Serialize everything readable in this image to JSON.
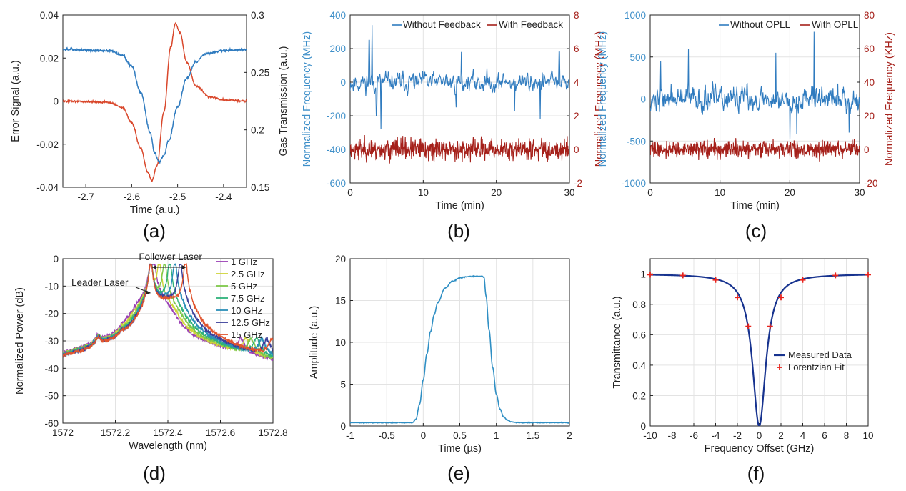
{
  "panel_labels": [
    "(a)",
    "(b)",
    "(c)",
    "(d)",
    "(e)",
    "(f)"
  ],
  "colors": {
    "blue": "#2f7bbf",
    "red": "#d9472b",
    "darkred": "#a5201a",
    "axis": "#222222",
    "grid": "#e3e3e3",
    "navy": "#17338f",
    "cross": "#e8231c",
    "blueaxis": "#3e8fc9",
    "redaxis": "#a5201a"
  },
  "chart_data": [
    {
      "id": "a",
      "type": "line",
      "xlabel": "Time (a.u.)",
      "ylabel": "Error Signal (a.u.)",
      "y2label": "Gas Transmission (a.u.)",
      "xlim": [
        -2.75,
        -2.35
      ],
      "ylim": [
        -0.04,
        0.04
      ],
      "y2lim": [
        0.15,
        0.3
      ],
      "grid": false,
      "xticks": [
        -2.7,
        -2.6,
        -2.5,
        -2.4
      ],
      "xticklabels": [
        "-2.7",
        "-2.6",
        "-2.5",
        "-2.4"
      ],
      "yticks": [
        -0.04,
        -0.02,
        0,
        0.02,
        0.04
      ],
      "yticklabels": [
        "-0.04",
        "-0.02",
        "0",
        "0.02",
        "0.04"
      ],
      "y2ticks": [
        0.15,
        0.2,
        0.25,
        0.3
      ],
      "y2ticklabels": [
        "0.15",
        "0.2",
        "0.25",
        "0.3"
      ],
      "series": [
        {
          "axis": "y",
          "color": "#d9472b",
          "noise": 0.0003,
          "x": [
            -2.75,
            -2.65,
            -2.62,
            -2.6,
            -2.58,
            -2.565,
            -2.556,
            -2.545,
            -2.53,
            -2.515,
            -2.505,
            -2.495,
            -2.48,
            -2.46,
            -2.43,
            -2.4,
            -2.35
          ],
          "y": [
            0.0,
            -0.0005,
            -0.003,
            -0.01,
            -0.022,
            -0.033,
            -0.037,
            -0.03,
            -0.005,
            0.025,
            0.036,
            0.032,
            0.018,
            0.007,
            0.002,
            0.0006,
            0.0
          ]
        },
        {
          "axis": "y2",
          "color": "#2f7bbf",
          "noise": 0.0007,
          "x": [
            -2.75,
            -2.65,
            -2.62,
            -2.6,
            -2.58,
            -2.56,
            -2.55,
            -2.54,
            -2.53,
            -2.52,
            -2.5,
            -2.48,
            -2.46,
            -2.44,
            -2.4,
            -2.35
          ],
          "y": [
            0.27,
            0.269,
            0.265,
            0.255,
            0.232,
            0.198,
            0.18,
            0.172,
            0.178,
            0.19,
            0.22,
            0.245,
            0.259,
            0.266,
            0.269,
            0.27
          ]
        }
      ]
    },
    {
      "id": "b",
      "type": "line",
      "xlabel": "Time (min)",
      "ylabel": "Normalized Frequency (MHz)",
      "y2label": "Normalized Frequency (MHz)",
      "xlim": [
        0,
        30
      ],
      "ylim": [
        -600,
        400
      ],
      "y2lim": [
        -2,
        8
      ],
      "grid": true,
      "xticks": [
        0,
        10,
        20,
        30
      ],
      "xticklabels": [
        "0",
        "10",
        "20",
        "30"
      ],
      "yticks": [
        -600,
        -400,
        -200,
        0,
        200,
        400
      ],
      "yticklabels": [
        "-600",
        "-400",
        "-200",
        "0",
        "200",
        "400"
      ],
      "y2ticks": [
        -2,
        0,
        2,
        4,
        6,
        8
      ],
      "y2ticklabels": [
        "-2",
        "0",
        "2",
        "4",
        "6",
        "8"
      ],
      "legend": {
        "placement": "top-right",
        "entries": [
          "Without Feedback",
          "With Feedback"
        ]
      },
      "series": [
        {
          "axis": "y",
          "color": "#2f7bbf",
          "random": {
            "n": 420,
            "base": 0,
            "amp": 70,
            "seed": 11,
            "spikes": [
              [
                3,
                340
              ],
              [
                2.6,
                250
              ],
              [
                4.2,
                -280
              ],
              [
                3.6,
                -200
              ],
              [
                14.5,
                -150
              ],
              [
                15.2,
                180
              ],
              [
                22.5,
                -170
              ],
              [
                26,
                -220
              ],
              [
                28.6,
                180
              ]
            ]
          }
        },
        {
          "axis": "y2",
          "color": "#a5201a",
          "random": {
            "n": 700,
            "base": 0,
            "amp": 0.45,
            "seed": 23,
            "spikes": []
          }
        }
      ]
    },
    {
      "id": "c",
      "type": "line",
      "xlabel": "Time (min)",
      "ylabel": "Normalized Frequency (MHz)",
      "y2label": "Normalized Frequency (KHz)",
      "xlim": [
        0,
        30
      ],
      "ylim": [
        -1000,
        1000
      ],
      "y2lim": [
        -20,
        80
      ],
      "grid": true,
      "xticks": [
        0,
        10,
        20,
        30
      ],
      "xticklabels": [
        "0",
        "10",
        "20",
        "30"
      ],
      "yticks": [
        -1000,
        -500,
        0,
        500,
        1000
      ],
      "yticklabels": [
        "-1000",
        "-500",
        "0",
        "500",
        "1000"
      ],
      "y2ticks": [
        -20,
        0,
        20,
        40,
        60,
        80
      ],
      "y2ticklabels": [
        "-20",
        "0",
        "20",
        "40",
        "60",
        "80"
      ],
      "legend": {
        "placement": "top-right",
        "entries": [
          "Without OPLL",
          "With OPLL"
        ]
      },
      "series": [
        {
          "axis": "y",
          "color": "#2f7bbf",
          "random": {
            "n": 520,
            "base": 0,
            "amp": 170,
            "seed": 37,
            "spikes": [
              [
                5.5,
                600
              ],
              [
                18,
                550
              ],
              [
                23.5,
                800
              ],
              [
                20,
                -480
              ],
              [
                21,
                -420
              ],
              [
                1.5,
                450
              ],
              [
                28.5,
                -400
              ]
            ]
          }
        },
        {
          "axis": "y2",
          "color": "#a5201a",
          "random": {
            "n": 700,
            "base": 0,
            "amp": 3.5,
            "seed": 41,
            "spikes": []
          }
        }
      ]
    },
    {
      "id": "d",
      "type": "line",
      "xlabel": "Wavelength (nm)",
      "ylabel": "Normalized Power (dB)",
      "xlim": [
        1572,
        1572.8
      ],
      "ylim": [
        -60,
        0
      ],
      "grid": true,
      "xticks": [
        1572,
        1572.2,
        1572.4,
        1572.6,
        1572.8
      ],
      "xticklabels": [
        "1572",
        "1572.2",
        "1572.4",
        "1572.6",
        "1572.8"
      ],
      "yticks": [
        -60,
        -50,
        -40,
        -30,
        -20,
        -10,
        0
      ],
      "yticklabels": [
        "-60",
        "-50",
        "-40",
        "-30",
        "-20",
        "-10",
        "0"
      ],
      "annotations": [
        "Follower Laser",
        "Leader Laser"
      ],
      "legend": {
        "placement": "top-right",
        "entries": [
          "1 GHz",
          "2.5 GHz",
          "5 GHz",
          "7.5 GHz",
          "10 GHz",
          "12.5 GHz",
          "15 GHz"
        ]
      },
      "series": [
        {
          "name": "1 GHz",
          "color": "#9a3fb5",
          "peak": 1572.347
        },
        {
          "name": "2.5 GHz",
          "color": "#cfd33a",
          "peak": 1572.367
        },
        {
          "name": "5 GHz",
          "color": "#7ec84a",
          "peak": 1572.387
        },
        {
          "name": "7.5 GHz",
          "color": "#2fb27a",
          "peak": 1572.407
        },
        {
          "name": "10 GHz",
          "color": "#2a8fb8",
          "peak": 1572.427
        },
        {
          "name": "12.5 GHz",
          "color": "#3a3f9a",
          "peak": 1572.447
        },
        {
          "name": "15 GHz",
          "color": "#e0542e",
          "peak": 1572.467
        }
      ],
      "leader_peak": 1572.335
    },
    {
      "id": "e",
      "type": "line",
      "xlabel": "Time (µs)",
      "ylabel": "Amplitude (a.u.)",
      "xlim": [
        -1,
        2
      ],
      "ylim": [
        0,
        20
      ],
      "grid": true,
      "xticks": [
        -1,
        -0.5,
        0,
        0.5,
        1,
        1.5,
        2
      ],
      "xticklabels": [
        "-1",
        "-0.5",
        "0",
        "0.5",
        "1",
        "1.5",
        "2"
      ],
      "yticks": [
        0,
        5,
        10,
        15,
        20
      ],
      "yticklabels": [
        "0",
        "5",
        "10",
        "15",
        "20"
      ],
      "series": [
        {
          "color": "#2f8fc4",
          "x": [
            -1,
            -0.15,
            -0.1,
            -0.05,
            0,
            0.05,
            0.1,
            0.15,
            0.2,
            0.3,
            0.4,
            0.5,
            0.6,
            0.7,
            0.8,
            0.83,
            0.86,
            0.9,
            0.95,
            1.0,
            1.05,
            1.1,
            1.15,
            1.2,
            1.3,
            2
          ],
          "y": [
            0.4,
            0.4,
            0.8,
            2.6,
            5.5,
            8.6,
            11.3,
            13.3,
            14.8,
            16.5,
            17.3,
            17.7,
            17.85,
            17.9,
            17.9,
            17.8,
            15.5,
            11.5,
            7.0,
            3.8,
            2.0,
            1.1,
            0.7,
            0.5,
            0.4,
            0.4
          ]
        }
      ]
    },
    {
      "id": "f",
      "type": "line",
      "xlabel": "Frequency Offset (GHz)",
      "ylabel": "Transmittance (a.u.)",
      "xlim": [
        -10,
        10
      ],
      "ylim": [
        0,
        1.1
      ],
      "grid": true,
      "xticks": [
        -10,
        -8,
        -6,
        -4,
        -2,
        0,
        2,
        4,
        6,
        8,
        10
      ],
      "xticklabels": [
        "-10",
        "-8",
        "-6",
        "-4",
        "-2",
        "0",
        "2",
        "4",
        "6",
        "8",
        "10"
      ],
      "yticks": [
        0,
        0.2,
        0.4,
        0.6,
        0.8,
        1
      ],
      "yticklabels": [
        "0",
        "0.2",
        "0.4",
        "0.6",
        "0.8",
        "1"
      ],
      "legend": {
        "placement": "bottom-right",
        "entries": [
          "Measured Data",
          "Lorentzian Fit"
        ]
      },
      "lorentz_hwhm": 0.75,
      "fit_points": {
        "x": [
          -10,
          -7,
          -4,
          -2,
          -1,
          1,
          2,
          4,
          7,
          10
        ],
        "y": [
          0.995,
          0.99,
          0.96,
          0.845,
          0.655,
          0.655,
          0.845,
          0.96,
          0.99,
          0.995
        ]
      }
    }
  ]
}
